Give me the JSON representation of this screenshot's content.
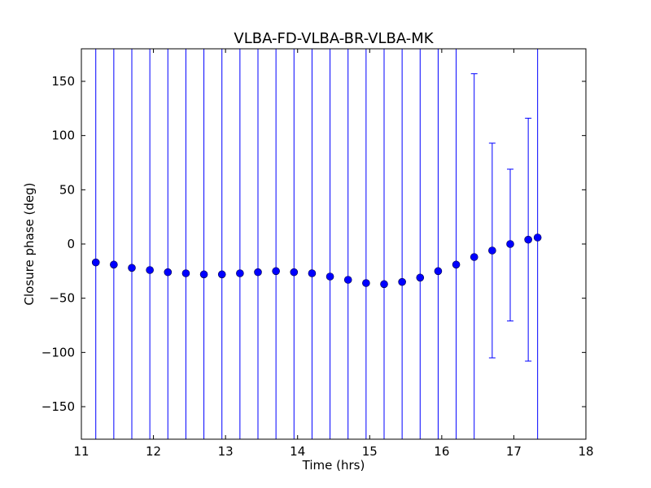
{
  "chart_data": {
    "type": "scatter",
    "title": "VLBA-FD-VLBA-BR-VLBA-MK",
    "xlabel": "Time (hrs)",
    "ylabel": "Closure phase (deg)",
    "xlim": [
      11,
      18
    ],
    "ylim": [
      -180,
      180
    ],
    "xticks": [
      11,
      12,
      13,
      14,
      15,
      16,
      17,
      18
    ],
    "xtick_labels": [
      "11",
      "12",
      "13",
      "14",
      "15",
      "16",
      "17",
      "18"
    ],
    "yticks": [
      150,
      100,
      50,
      0,
      -50,
      -100,
      -150
    ],
    "ytick_labels": [
      "150",
      "100",
      "50",
      "0",
      "−50",
      "−100",
      "−150"
    ],
    "grid": false,
    "marker_color": "#0000ff",
    "errorbar_color": "#0000ff",
    "series": [
      {
        "x": [
          11.2,
          11.45,
          11.7,
          11.95,
          12.2,
          12.45,
          12.7,
          12.95,
          13.2,
          13.45,
          13.7,
          13.95,
          14.2,
          14.45,
          14.7,
          14.95,
          15.2,
          15.45,
          15.7,
          15.95,
          16.2,
          16.45,
          16.7,
          16.95,
          17.2,
          17.33
        ],
        "y": [
          -17,
          -19,
          -22,
          -24,
          -26,
          -27,
          -28,
          -28,
          -27,
          -26,
          -25,
          -26,
          -27,
          -30,
          -33,
          -36,
          -37,
          -35,
          -31,
          -25,
          -19,
          -12,
          -6,
          0,
          4,
          6
        ],
        "err_low": [
          -180,
          -180,
          -180,
          -180,
          -180,
          -180,
          -180,
          -180,
          -180,
          -180,
          -180,
          -180,
          -180,
          -180,
          -180,
          -180,
          -180,
          -180,
          -180,
          -180,
          -180,
          -180,
          -105,
          -71,
          -108,
          -180
        ],
        "err_high": [
          180,
          180,
          180,
          180,
          180,
          180,
          180,
          180,
          180,
          180,
          180,
          180,
          180,
          180,
          180,
          180,
          180,
          180,
          180,
          180,
          180,
          157,
          93,
          69,
          116,
          180
        ]
      }
    ]
  }
}
